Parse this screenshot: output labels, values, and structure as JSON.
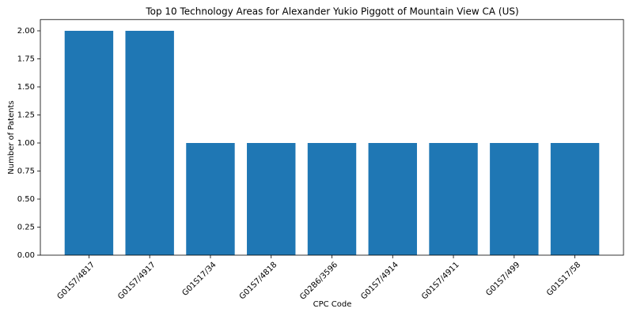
{
  "chart_data": {
    "type": "bar",
    "title": "Top 10 Technology Areas for Alexander Yukio Piggott of Mountain View CA (US)",
    "x_label": "CPC Code",
    "y_label": "Number of Patents",
    "categories": [
      "G01S7/4817",
      "G01S7/4917",
      "G01S17/34",
      "G01S7/4818",
      "G02B6/3596",
      "G01S7/4914",
      "G01S7/4911",
      "G01S7/499",
      "G01S17/58"
    ],
    "values": [
      2,
      2,
      1,
      1,
      1,
      1,
      1,
      1,
      1
    ],
    "color": "#1f77b4",
    "ylim": [
      0,
      2.1
    ],
    "yticks": [
      {
        "value": 0,
        "label": "0.00"
      },
      {
        "value": 0.25,
        "label": "0.25"
      },
      {
        "value": 0.5,
        "label": "0.50"
      },
      {
        "value": 0.75,
        "label": "0.75"
      },
      {
        "value": 1,
        "label": "1.00"
      },
      {
        "value": 1.25,
        "label": "1.25"
      },
      {
        "value": 1.5,
        "label": "1.50"
      },
      {
        "value": 1.75,
        "label": "1.75"
      },
      {
        "value": 2,
        "label": "2.00"
      }
    ],
    "grid": false
  }
}
